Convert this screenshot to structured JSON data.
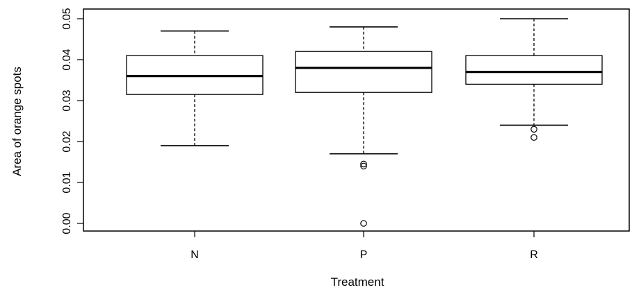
{
  "chart_data": {
    "type": "box",
    "xlabel": "Treatment",
    "ylabel": "Area of orange spots",
    "ylim": [
      0.0,
      0.05
    ],
    "yticks": [
      "0.00",
      "0.01",
      "0.02",
      "0.03",
      "0.04",
      "0.05"
    ],
    "categories": [
      "N",
      "P",
      "R"
    ],
    "boxes": [
      {
        "category": "N",
        "whisker_low": 0.019,
        "q1": 0.0315,
        "median": 0.036,
        "q3": 0.041,
        "whisker_high": 0.047,
        "outliers": []
      },
      {
        "category": "P",
        "whisker_low": 0.017,
        "q1": 0.032,
        "median": 0.038,
        "q3": 0.042,
        "whisker_high": 0.048,
        "outliers": [
          0.0145,
          0.014,
          0.0
        ]
      },
      {
        "category": "R",
        "whisker_low": 0.024,
        "q1": 0.034,
        "median": 0.037,
        "q3": 0.041,
        "whisker_high": 0.05,
        "outliers": [
          0.023,
          0.021
        ]
      }
    ],
    "grid": false,
    "legend": "none"
  }
}
